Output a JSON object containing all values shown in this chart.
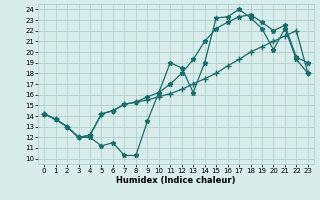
{
  "xlabel": "Humidex (Indice chaleur)",
  "xlim": [
    -0.5,
    23.5
  ],
  "ylim": [
    9.5,
    24.5
  ],
  "xticks": [
    0,
    1,
    2,
    3,
    4,
    5,
    6,
    7,
    8,
    9,
    10,
    11,
    12,
    13,
    14,
    15,
    16,
    17,
    18,
    19,
    20,
    21,
    22,
    23
  ],
  "yticks": [
    10,
    11,
    12,
    13,
    14,
    15,
    16,
    17,
    18,
    19,
    20,
    21,
    22,
    23,
    24
  ],
  "background_color": "#d8ecea",
  "grid_color": "#aacccc",
  "line_color": "#1a6b6b",
  "line1_x": [
    0,
    1,
    2,
    3,
    4,
    5,
    6,
    7,
    8,
    9,
    10,
    11,
    12,
    13,
    14,
    15,
    16,
    17,
    18,
    19,
    20,
    21,
    22,
    23
  ],
  "line1_y": [
    14.2,
    13.7,
    13.0,
    12.0,
    12.0,
    11.2,
    11.5,
    10.3,
    10.3,
    13.5,
    16.2,
    19.0,
    18.5,
    16.2,
    19.0,
    23.2,
    23.3,
    24.0,
    23.2,
    22.2,
    20.2,
    22.2,
    19.3,
    18.0
  ],
  "line2_x": [
    0,
    1,
    2,
    3,
    4,
    5,
    6,
    7,
    8,
    9,
    10,
    11,
    12,
    13,
    14,
    15,
    16,
    17,
    18,
    19,
    20,
    21,
    22,
    23
  ],
  "line2_y": [
    14.2,
    13.7,
    13.0,
    12.0,
    12.2,
    14.2,
    14.5,
    15.1,
    15.3,
    15.5,
    15.8,
    16.1,
    16.5,
    17.0,
    17.5,
    18.0,
    18.7,
    19.3,
    20.0,
    20.5,
    21.0,
    21.5,
    22.0,
    18.0
  ],
  "line3_x": [
    0,
    1,
    2,
    3,
    4,
    5,
    6,
    7,
    8,
    9,
    10,
    11,
    12,
    13,
    14,
    15,
    16,
    17,
    18,
    19,
    20,
    21,
    22,
    23
  ],
  "line3_y": [
    14.2,
    13.7,
    13.0,
    12.0,
    12.2,
    14.2,
    14.5,
    15.1,
    15.3,
    15.8,
    16.2,
    17.0,
    18.0,
    19.3,
    21.0,
    22.2,
    22.8,
    23.3,
    23.5,
    22.8,
    22.0,
    22.5,
    19.5,
    19.0
  ]
}
